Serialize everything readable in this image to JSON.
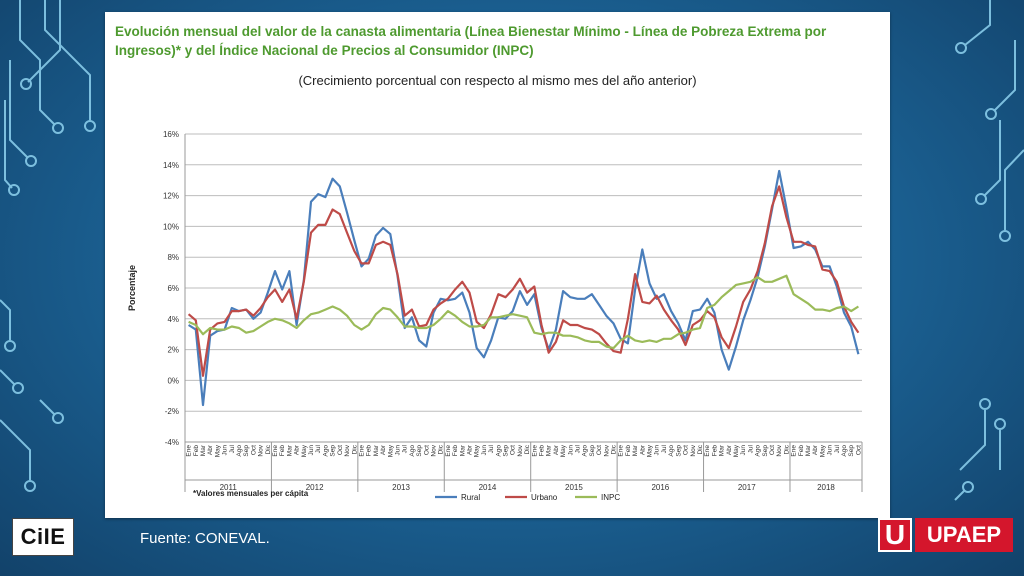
{
  "title": "Evolución mensual del valor de la canasta alimentaria (Línea Bienestar Mínimo - Línea de Pobreza Extrema por Ingresos)* y del Índice Nacional de Precios al Consumidor (INPC)",
  "subtitle": "(Crecimiento porcentual con respecto al mismo mes del año anterior)",
  "footnote": "*Valores mensuales per cápita",
  "source": "Fuente: CONEVAL.",
  "logos": {
    "left": "CIIE",
    "right_mark": "U",
    "right_word": "UPAEP"
  },
  "colors": {
    "rural": "#4a7ebb",
    "urbano": "#be4b48",
    "inpc": "#9bbb59",
    "title": "#4e9a2f"
  },
  "chart_data": {
    "type": "line",
    "ylabel": "Porcentaje",
    "xlabel": "",
    "ylim": [
      -4,
      16
    ],
    "yticks": [
      "-4%",
      "-2%",
      "0%",
      "2%",
      "4%",
      "6%",
      "8%",
      "10%",
      "12%",
      "14%",
      "16%"
    ],
    "grid": true,
    "legend": "bottom",
    "month_labels": [
      "Ene",
      "Feb",
      "Mar",
      "Abr",
      "May",
      "Jun",
      "Jul",
      "Ago",
      "Sep",
      "Oct",
      "Nov",
      "Dic"
    ],
    "years": [
      "2011",
      "2012",
      "2013",
      "2014",
      "2015",
      "2016",
      "2017",
      "2018"
    ],
    "series": [
      {
        "name": "Rural",
        "values": [
          3.6,
          3.3,
          -1.6,
          2.9,
          3.2,
          3.3,
          4.7,
          4.5,
          4.6,
          4.0,
          4.4,
          5.7,
          7.1,
          5.9,
          7.1,
          3.6,
          6.5,
          11.6,
          12.1,
          11.9,
          13.1,
          12.6,
          10.9,
          9.1,
          7.4,
          7.9,
          9.4,
          9.9,
          9.5,
          6.8,
          3.4,
          4.1,
          2.6,
          2.2,
          4.4,
          5.3,
          5.2,
          5.3,
          5.7,
          4.4,
          2.1,
          1.5,
          2.6,
          4.1,
          4.0,
          4.5,
          5.8,
          4.9,
          5.6,
          3.4,
          2.0,
          3.3,
          5.8,
          5.4,
          5.3,
          5.3,
          5.6,
          4.9,
          4.2,
          3.7,
          2.7,
          2.4,
          5.9,
          8.5,
          6.3,
          5.3,
          5.6,
          4.5,
          3.7,
          2.6,
          4.5,
          4.6,
          5.3,
          4.4,
          2.0,
          0.7,
          2.2,
          3.9,
          5.2,
          6.7,
          8.7,
          11.1,
          13.6,
          11.2,
          8.6,
          8.7,
          9.0,
          8.5,
          7.4,
          7.4,
          6.1,
          4.4,
          3.5,
          1.7
        ]
      },
      {
        "name": "Urbano",
        "values": [
          4.3,
          3.9,
          0.3,
          3.3,
          3.7,
          3.8,
          4.5,
          4.5,
          4.6,
          4.2,
          4.7,
          5.4,
          5.9,
          5.1,
          5.9,
          4.0,
          6.4,
          9.6,
          10.1,
          10.1,
          11.1,
          10.8,
          9.6,
          8.4,
          7.6,
          7.6,
          8.8,
          9.0,
          8.8,
          6.9,
          4.2,
          4.6,
          3.5,
          3.6,
          4.6,
          5.0,
          5.3,
          5.9,
          6.4,
          5.7,
          3.8,
          3.4,
          4.3,
          5.6,
          5.4,
          5.9,
          6.6,
          5.7,
          6.1,
          3.6,
          1.8,
          2.5,
          3.9,
          3.6,
          3.6,
          3.4,
          3.3,
          3.0,
          2.4,
          1.9,
          1.8,
          4.0,
          6.9,
          5.1,
          5.0,
          5.5,
          4.6,
          3.9,
          3.3,
          2.3,
          3.6,
          3.9,
          4.5,
          4.1,
          2.8,
          2.1,
          3.5,
          5.1,
          5.9,
          7.1,
          8.9,
          11.3,
          12.6,
          10.6,
          9.0,
          9.0,
          8.8,
          8.7,
          7.2,
          7.1,
          6.4,
          4.8,
          3.8,
          3.1
        ]
      },
      {
        "name": "INPC",
        "values": [
          3.8,
          3.6,
          3.0,
          3.4,
          3.3,
          3.3,
          3.5,
          3.4,
          3.1,
          3.2,
          3.5,
          3.8,
          4.0,
          3.9,
          3.7,
          3.4,
          3.9,
          4.3,
          4.4,
          4.6,
          4.8,
          4.6,
          4.2,
          3.6,
          3.3,
          3.6,
          4.3,
          4.7,
          4.6,
          4.1,
          3.5,
          3.5,
          3.4,
          3.4,
          3.6,
          4.0,
          4.5,
          4.2,
          3.8,
          3.5,
          3.5,
          3.6,
          4.1,
          4.1,
          4.2,
          4.3,
          4.2,
          4.1,
          3.1,
          3.0,
          3.1,
          3.1,
          2.9,
          2.9,
          2.8,
          2.6,
          2.5,
          2.5,
          2.2,
          2.1,
          2.6,
          2.9,
          2.6,
          2.5,
          2.6,
          2.5,
          2.7,
          2.7,
          3.0,
          3.1,
          3.3,
          3.4,
          4.7,
          4.9,
          5.4,
          5.8,
          6.2,
          6.3,
          6.4,
          6.7,
          6.4,
          6.4,
          6.6,
          6.8,
          5.6,
          5.3,
          5.0,
          4.6,
          4.6,
          4.5,
          4.7,
          4.8,
          4.5,
          4.8
        ]
      }
    ]
  }
}
